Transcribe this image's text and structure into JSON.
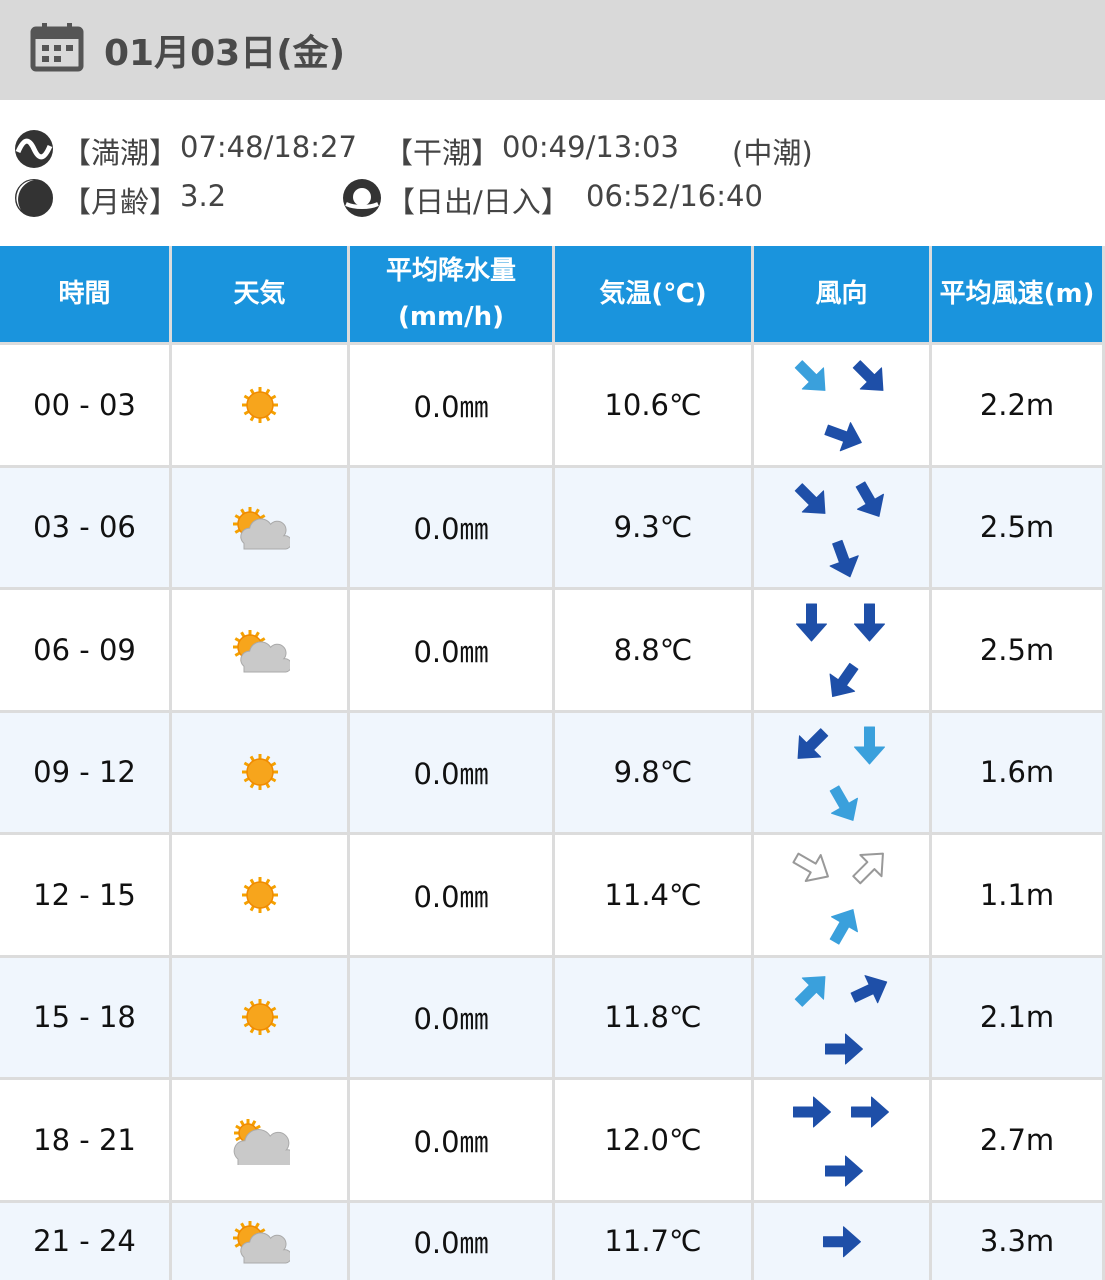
{
  "header": {
    "date": "01月03日(金)"
  },
  "tide": {
    "high_label": "【満潮】",
    "high": "07:48/18:27",
    "low_label": "【干潮】",
    "low": "00:49/13:03",
    "tide_name": "(中潮)"
  },
  "moon": {
    "label": "【月齢】",
    "age": "3.2"
  },
  "sun": {
    "label": "【日出/日入】",
    "times": "06:52/16:40"
  },
  "table": {
    "headers": [
      "時間",
      "天気",
      [
        "平均降水量",
        "(mm/h)"
      ],
      "気温(℃)",
      "風向",
      "平均風速(m)"
    ],
    "rows": [
      [
        "00 - 03",
        "0.0㎜",
        "10.6℃",
        "2.2m"
      ],
      [
        "03 - 06",
        "0.0㎜",
        "9.3℃",
        "2.5m"
      ],
      [
        "06 - 09",
        "0.0㎜",
        "8.8℃",
        "2.5m"
      ],
      [
        "09 - 12",
        "0.0㎜",
        "9.8℃",
        "1.6m"
      ],
      [
        "12 - 15",
        "0.0㎜",
        "11.4℃",
        "1.1m"
      ],
      [
        "15 - 18",
        "0.0㎜",
        "11.8℃",
        "2.1m"
      ],
      [
        "18 - 21",
        "0.0㎜",
        "12.0℃",
        "2.7m"
      ],
      [
        "21 - 24",
        "0.0㎜",
        "11.7℃",
        "3.3m"
      ]
    ]
  }
}
